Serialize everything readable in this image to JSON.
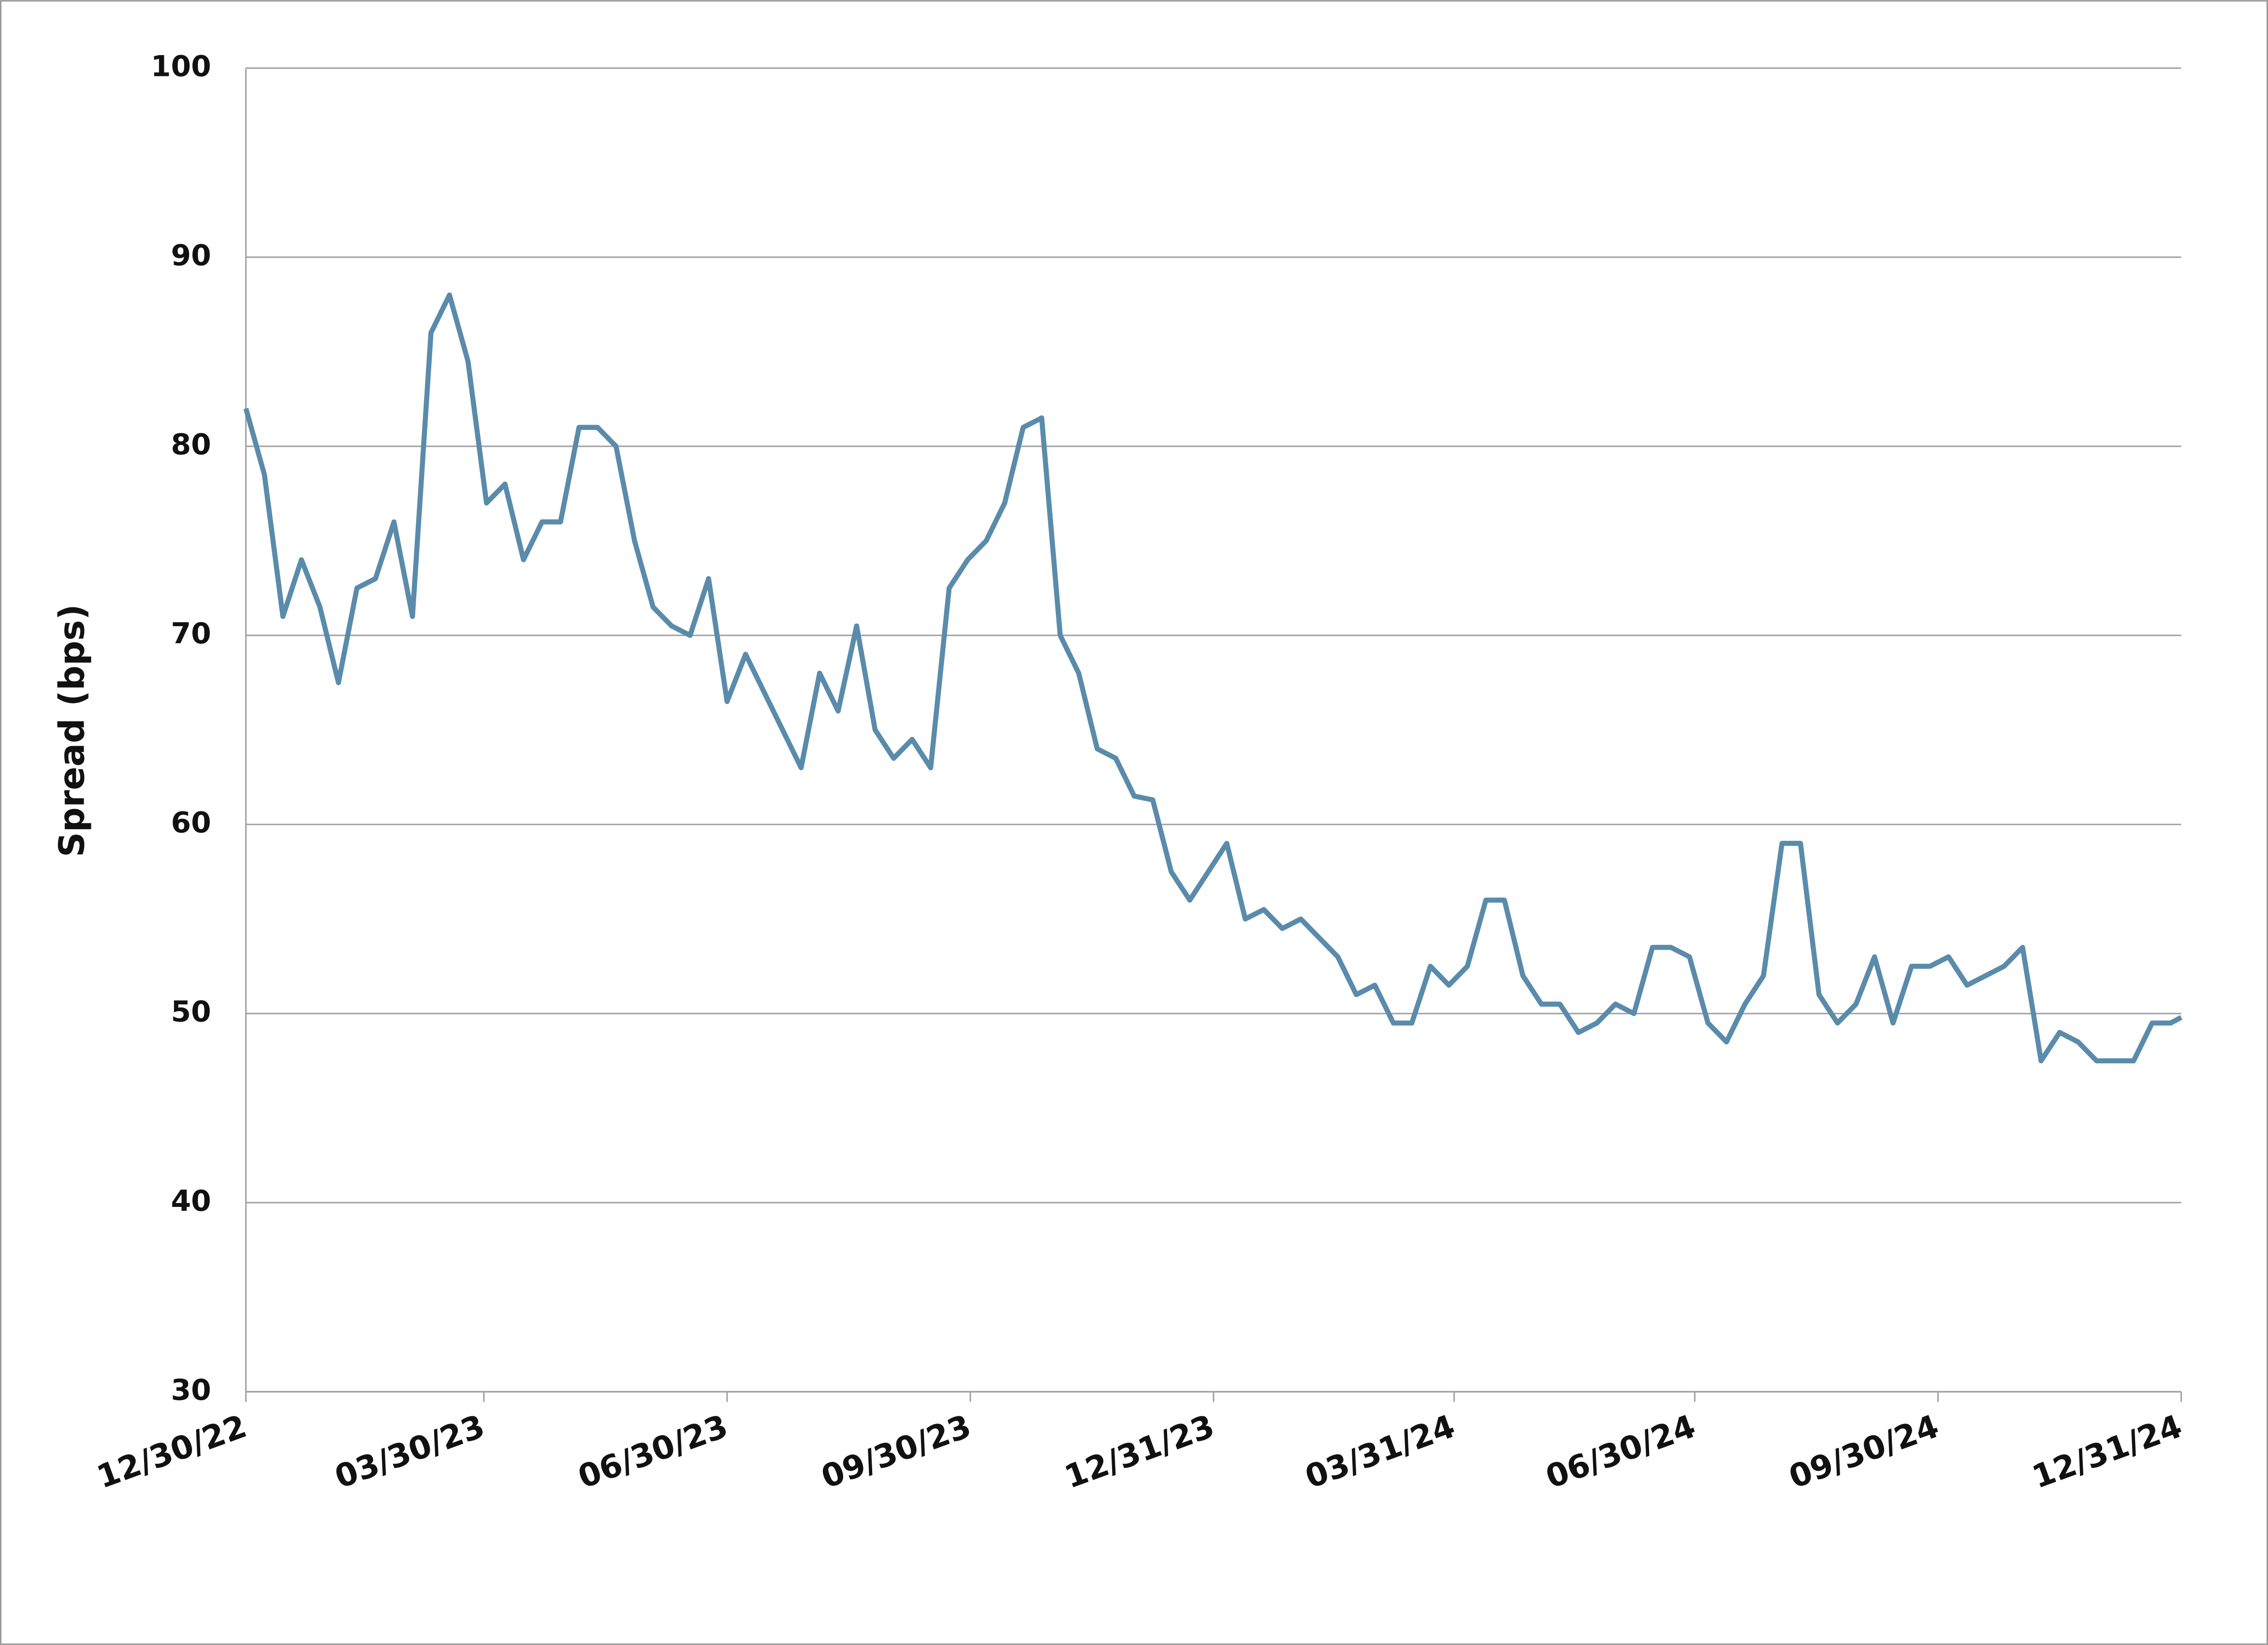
{
  "chart_data": {
    "type": "line",
    "y_label": "Spread (bps)",
    "color": "#5a8bab",
    "grid": true,
    "x": [
      "12/30/22",
      "01/06/23",
      "01/13/23",
      "01/20/23",
      "01/27/23",
      "02/03/23",
      "02/10/23",
      "02/17/23",
      "02/24/23",
      "03/03/23",
      "03/10/23",
      "03/17/23",
      "03/24/23",
      "03/31/23",
      "04/07/23",
      "04/14/23",
      "04/21/23",
      "04/28/23",
      "05/05/23",
      "05/12/23",
      "05/19/23",
      "05/26/23",
      "06/02/23",
      "06/09/23",
      "06/16/23",
      "06/23/23",
      "06/30/23",
      "07/07/23",
      "07/14/23",
      "07/21/23",
      "07/28/23",
      "08/04/23",
      "08/11/23",
      "08/18/23",
      "08/25/23",
      "09/01/23",
      "09/08/23",
      "09/15/23",
      "09/22/23",
      "09/29/23",
      "10/06/23",
      "10/13/23",
      "10/20/23",
      "10/27/23",
      "11/03/23",
      "11/10/23",
      "11/17/23",
      "11/24/23",
      "12/01/23",
      "12/08/23",
      "12/15/23",
      "12/22/23",
      "12/29/23",
      "01/05/24",
      "01/12/24",
      "01/19/24",
      "01/26/24",
      "02/02/24",
      "02/09/24",
      "02/16/24",
      "02/23/24",
      "03/01/24",
      "03/08/24",
      "03/15/24",
      "03/22/24",
      "03/29/24",
      "04/05/24",
      "04/12/24",
      "04/19/24",
      "04/26/24",
      "05/03/24",
      "05/10/24",
      "05/17/24",
      "05/24/24",
      "05/31/24",
      "06/07/24",
      "06/14/24",
      "06/21/24",
      "06/28/24",
      "07/05/24",
      "07/12/24",
      "07/19/24",
      "07/26/24",
      "08/02/24",
      "08/09/24",
      "08/16/24",
      "08/23/24",
      "08/30/24",
      "09/06/24",
      "09/13/24",
      "09/20/24",
      "09/27/24",
      "10/04/24",
      "10/11/24",
      "10/18/24",
      "10/25/24",
      "11/01/24",
      "11/08/24",
      "11/15/24",
      "11/22/24",
      "11/29/24",
      "12/06/24",
      "12/13/24",
      "12/20/24",
      "12/27/24",
      "12/31/24"
    ],
    "values": [
      82,
      78.5,
      71,
      74,
      71.5,
      67.5,
      72.5,
      73,
      76,
      71,
      86,
      88,
      84.5,
      77,
      78,
      74,
      76,
      76,
      81,
      81,
      80,
      75,
      71.5,
      70.5,
      70,
      73,
      66.5,
      69,
      67,
      65,
      63,
      68,
      66,
      70.5,
      65,
      63.5,
      64.5,
      63,
      72.5,
      74,
      75,
      77,
      81,
      81.5,
      70,
      68,
      64,
      63.5,
      61.5,
      61.3,
      57.5,
      56,
      57.5,
      59,
      55,
      55.5,
      54.5,
      55,
      54,
      53,
      51,
      51.5,
      49.5,
      49.5,
      52.5,
      51.5,
      52.5,
      56,
      56,
      52,
      50.5,
      50.5,
      49,
      49.5,
      50.5,
      50,
      53.5,
      53.5,
      53,
      49.5,
      48.5,
      50.5,
      52,
      59,
      59,
      51,
      49.5,
      50.5,
      53,
      49.5,
      52.5,
      52.5,
      53,
      51.5,
      52,
      52.5,
      53.5,
      47.5,
      49,
      48.5,
      47.5,
      47.5,
      47.5,
      49.5,
      49.5,
      49.8
    ],
    "xlim": [
      "12/30/22",
      "12/31/24"
    ],
    "xticks": [
      "12/30/22",
      "03/30/23",
      "06/30/23",
      "09/30/23",
      "12/31/23",
      "03/31/24",
      "06/30/24",
      "09/30/24",
      "12/31/24"
    ],
    "ylim": [
      30,
      100
    ],
    "yticks": [
      30,
      40,
      50,
      60,
      70,
      80,
      90,
      100
    ]
  }
}
